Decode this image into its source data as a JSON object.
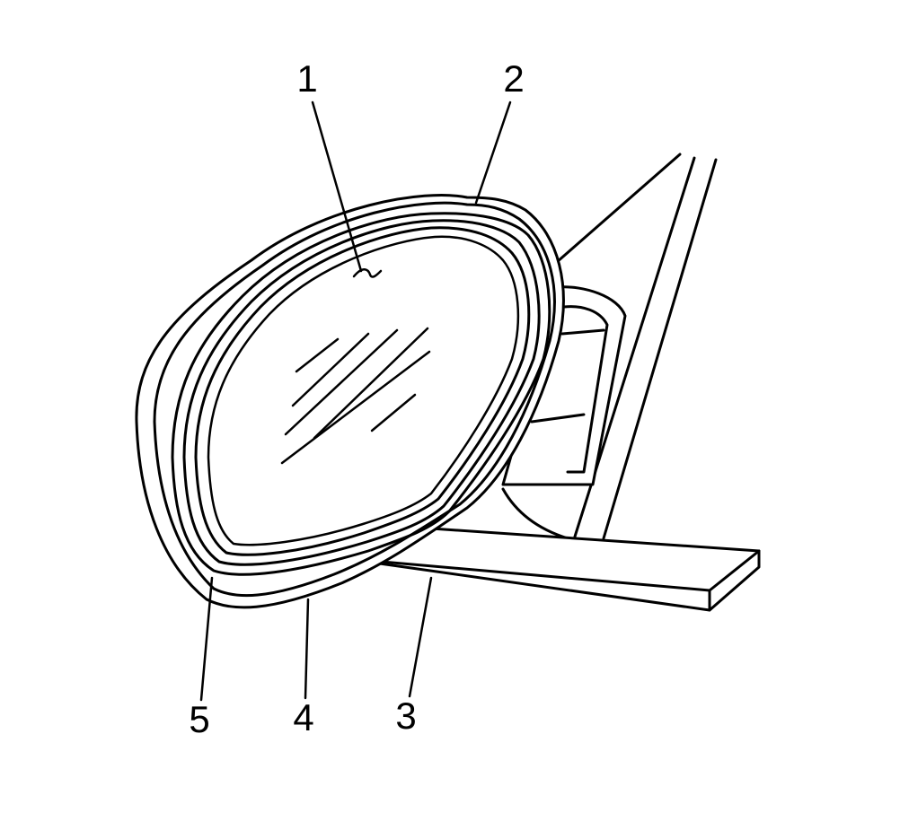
{
  "callouts": {
    "c1": "1",
    "c2": "2",
    "c3": "3",
    "c4": "4",
    "c5": "5"
  },
  "colors": {
    "line": "#000000",
    "background": "#ffffff"
  }
}
